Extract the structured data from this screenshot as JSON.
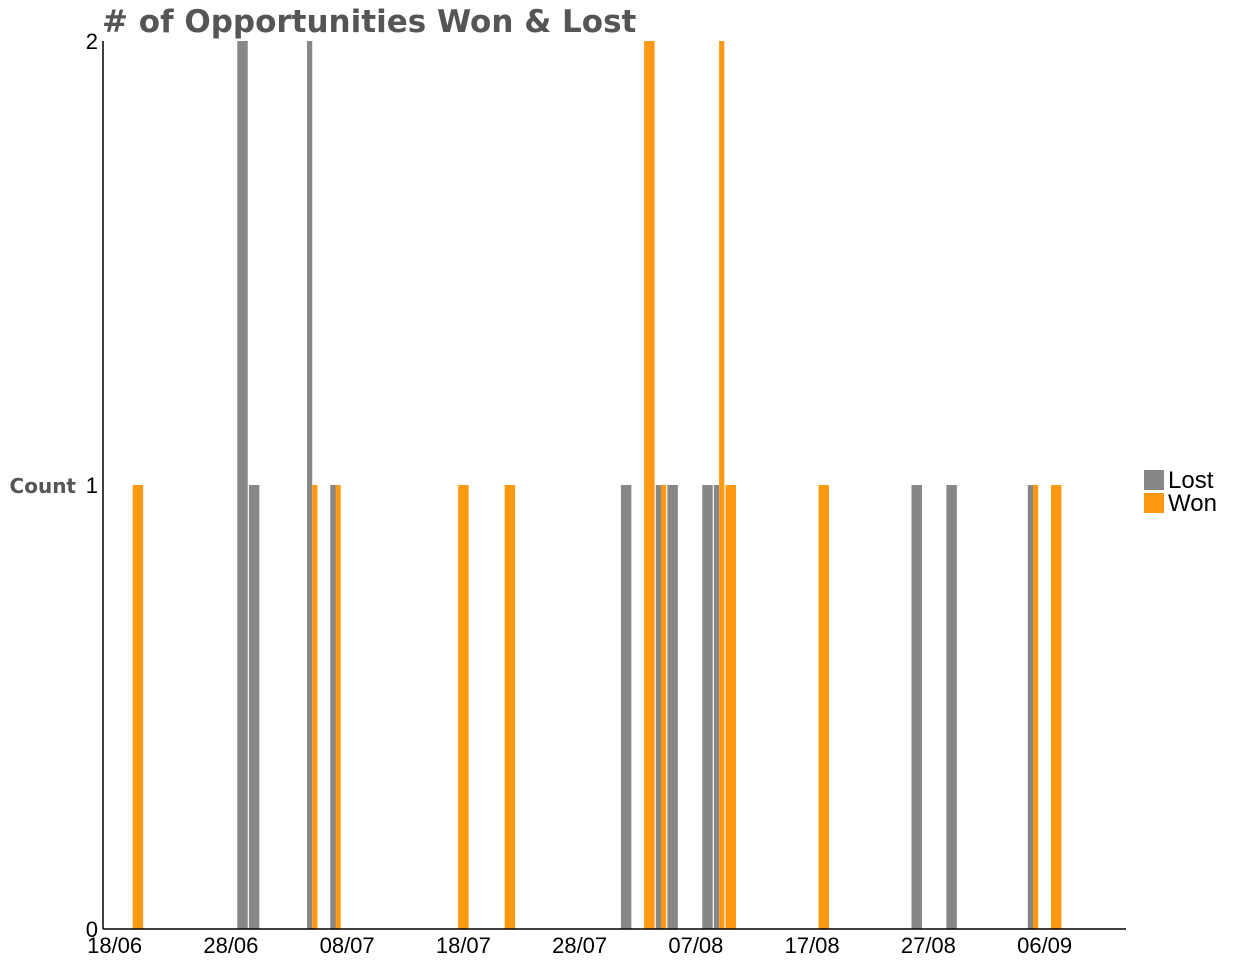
{
  "chart_data": {
    "type": "bar",
    "title": "# of Opportunities Won & Lost",
    "xlabel": "",
    "ylabel": "Count",
    "ylim": [
      0,
      2
    ],
    "yticks": [
      0,
      1,
      2
    ],
    "xlim": [
      "2018-06-17",
      "2018-09-13"
    ],
    "xtick_dates": [
      "2018-06-18",
      "2018-06-28",
      "2018-07-08",
      "2018-07-18",
      "2018-07-28",
      "2018-08-07",
      "2018-08-17",
      "2018-08-27",
      "2018-09-06"
    ],
    "xtick_labels": [
      "18/06",
      "28/06",
      "08/07",
      "18/07",
      "28/07",
      "07/08",
      "17/08",
      "27/08",
      "06/09"
    ],
    "legend_position": "right",
    "grid": false,
    "series": [
      {
        "name": "Lost",
        "color": "#878787",
        "points": [
          {
            "date": "2018-06-29",
            "value": 2
          },
          {
            "date": "2018-06-30",
            "value": 1
          },
          {
            "date": "2018-07-05",
            "value": 2
          },
          {
            "date": "2018-07-07",
            "value": 1
          },
          {
            "date": "2018-08-01",
            "value": 1
          },
          {
            "date": "2018-08-04",
            "value": 1
          },
          {
            "date": "2018-08-05",
            "value": 1
          },
          {
            "date": "2018-08-08",
            "value": 1
          },
          {
            "date": "2018-08-09",
            "value": 1
          },
          {
            "date": "2018-08-26",
            "value": 1
          },
          {
            "date": "2018-08-29",
            "value": 1
          },
          {
            "date": "2018-09-05",
            "value": 1
          }
        ]
      },
      {
        "name": "Won",
        "color": "#ff9912",
        "points": [
          {
            "date": "2018-06-20",
            "value": 1
          },
          {
            "date": "2018-07-05",
            "value": 1
          },
          {
            "date": "2018-07-07",
            "value": 1
          },
          {
            "date": "2018-07-18",
            "value": 1
          },
          {
            "date": "2018-07-22",
            "value": 1
          },
          {
            "date": "2018-08-03",
            "value": 2
          },
          {
            "date": "2018-08-04",
            "value": 1
          },
          {
            "date": "2018-08-09",
            "value": 2
          },
          {
            "date": "2018-08-10",
            "value": 1
          },
          {
            "date": "2018-08-18",
            "value": 1
          },
          {
            "date": "2018-09-05",
            "value": 1
          },
          {
            "date": "2018-09-07",
            "value": 1
          }
        ]
      }
    ]
  }
}
